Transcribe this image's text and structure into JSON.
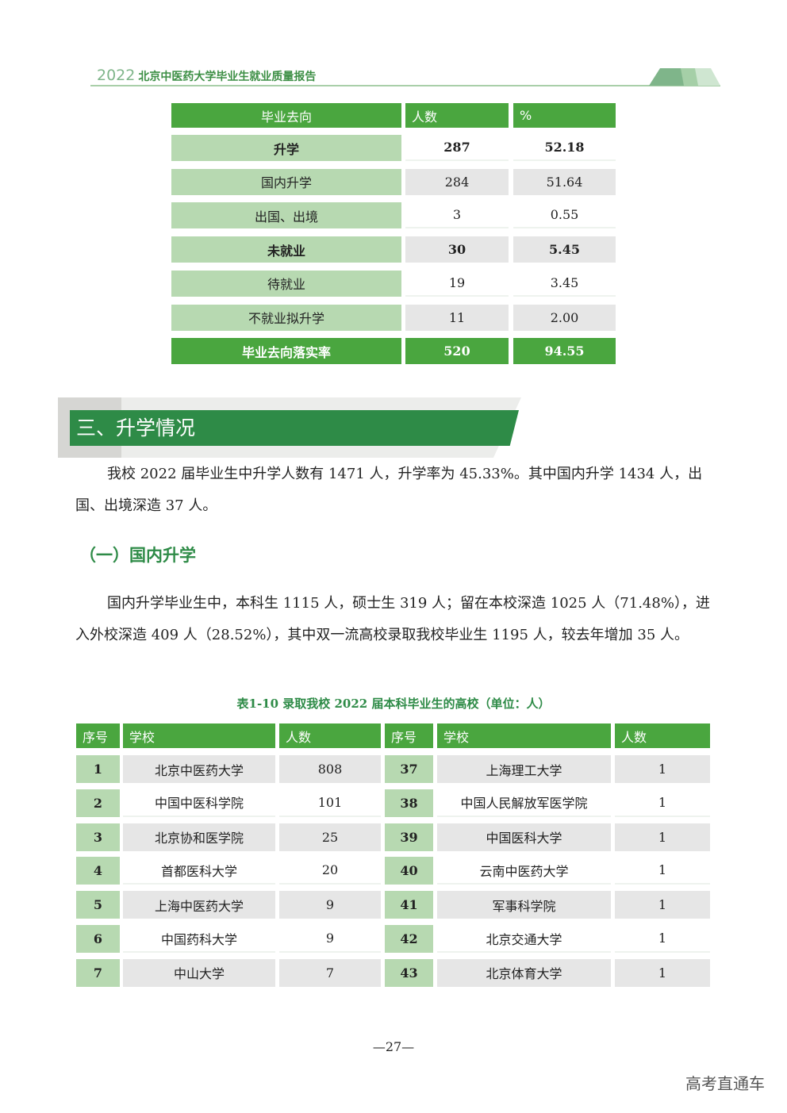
{
  "header": {
    "year": "2022",
    "title": "北京中医药大学毕业生就业质量报告"
  },
  "table1": {
    "headers": [
      "毕业去向",
      "人数",
      "%"
    ],
    "rows": [
      {
        "label": "升学",
        "count": "287",
        "pct": "52.18",
        "bold": true
      },
      {
        "label": "国内升学",
        "count": "284",
        "pct": "51.64",
        "bold": false
      },
      {
        "label": "出国、出境",
        "count": "3",
        "pct": "0.55",
        "bold": false
      },
      {
        "label": "未就业",
        "count": "30",
        "pct": "5.45",
        "bold": true
      },
      {
        "label": "待就业",
        "count": "19",
        "pct": "3.45",
        "bold": false
      },
      {
        "label": "不就业拟升学",
        "count": "11",
        "pct": "2.00",
        "bold": false
      },
      {
        "label": "毕业去向落实率",
        "count": "520",
        "pct": "94.55",
        "bold": true
      }
    ]
  },
  "section": {
    "title": "三、升学情况"
  },
  "para1": "我校 2022 届毕业生中升学人数有 1471 人，升学率为 45.33%。其中国内升学 1434 人，出国、出境深造 37 人。",
  "subsection": "（一）国内升学",
  "para2": "国内升学毕业生中，本科生 1115 人，硕士生 319 人；留在本校深造 1025 人（71.48%），进入外校深造 409 人（28.52%），其中双一流高校录取我校毕业生 1195 人，较去年增加 35 人。",
  "table2": {
    "caption": "表1-10  录取我校 2022 届本科毕业生的高校（单位：人）",
    "headers": [
      "序号",
      "学校",
      "人数",
      "序号",
      "学校",
      "人数"
    ],
    "rows": [
      [
        "1",
        "北京中医药大学",
        "808",
        "37",
        "上海理工大学",
        "1"
      ],
      [
        "2",
        "中国中医科学院",
        "101",
        "38",
        "中国人民解放军医学院",
        "1"
      ],
      [
        "3",
        "北京协和医学院",
        "25",
        "39",
        "中国医科大学",
        "1"
      ],
      [
        "4",
        "首都医科大学",
        "20",
        "40",
        "云南中医药大学",
        "1"
      ],
      [
        "5",
        "上海中医药大学",
        "9",
        "41",
        "军事科学院",
        "1"
      ],
      [
        "6",
        "中国药科大学",
        "9",
        "42",
        "北京交通大学",
        "1"
      ],
      [
        "7",
        "中山大学",
        "7",
        "43",
        "北京体育大学",
        "1"
      ]
    ]
  },
  "page_number": "—27—",
  "watermark": "高考直通车"
}
